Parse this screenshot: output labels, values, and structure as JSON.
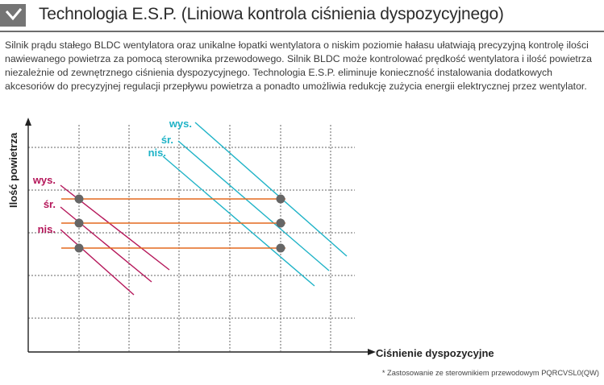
{
  "header": {
    "title": "Technologia E.S.P. (Liniowa kontrola ciśnienia dyspozycyjnego)"
  },
  "description": "Silnik prądu stałego BLDC wentylatora oraz unikalne łopatki wentylatora o niskim poziomie hałasu ułatwiają precyzyjną kontrolę ilości nawiewanego powietrza za pomocą sterownika przewodowego. Silnik BLDC może kontrolować prędkość wentylatora i ilość powietrza niezależnie od zewnętrznego ciśnienia dyspozycyjnego. Technologia E.S.P. eliminuje konieczność instalowania dodatkowych akcesoriów do precyzyjnej regulacji przepływu powietrza a ponadto umożliwia redukcję zużycia energii elektrycznej przez wentylator.",
  "diagram": {
    "y_axis_label": "Ilość powietrza",
    "x_axis_label": "Ciśnienie dyspozycyjne",
    "left_series": [
      "wys.",
      "śr.",
      "nis."
    ],
    "right_series": [
      "wys.",
      "śr.",
      "nis."
    ],
    "colors": {
      "left": "#b5175a",
      "right": "#1fb3c7",
      "levels": "#e3691e",
      "points": "#666666",
      "axis": "#222222",
      "grid": "#666666"
    }
  },
  "footnote": "* Zastosowanie ze sterownikiem przewodowym PQRCVSL0(QW)"
}
